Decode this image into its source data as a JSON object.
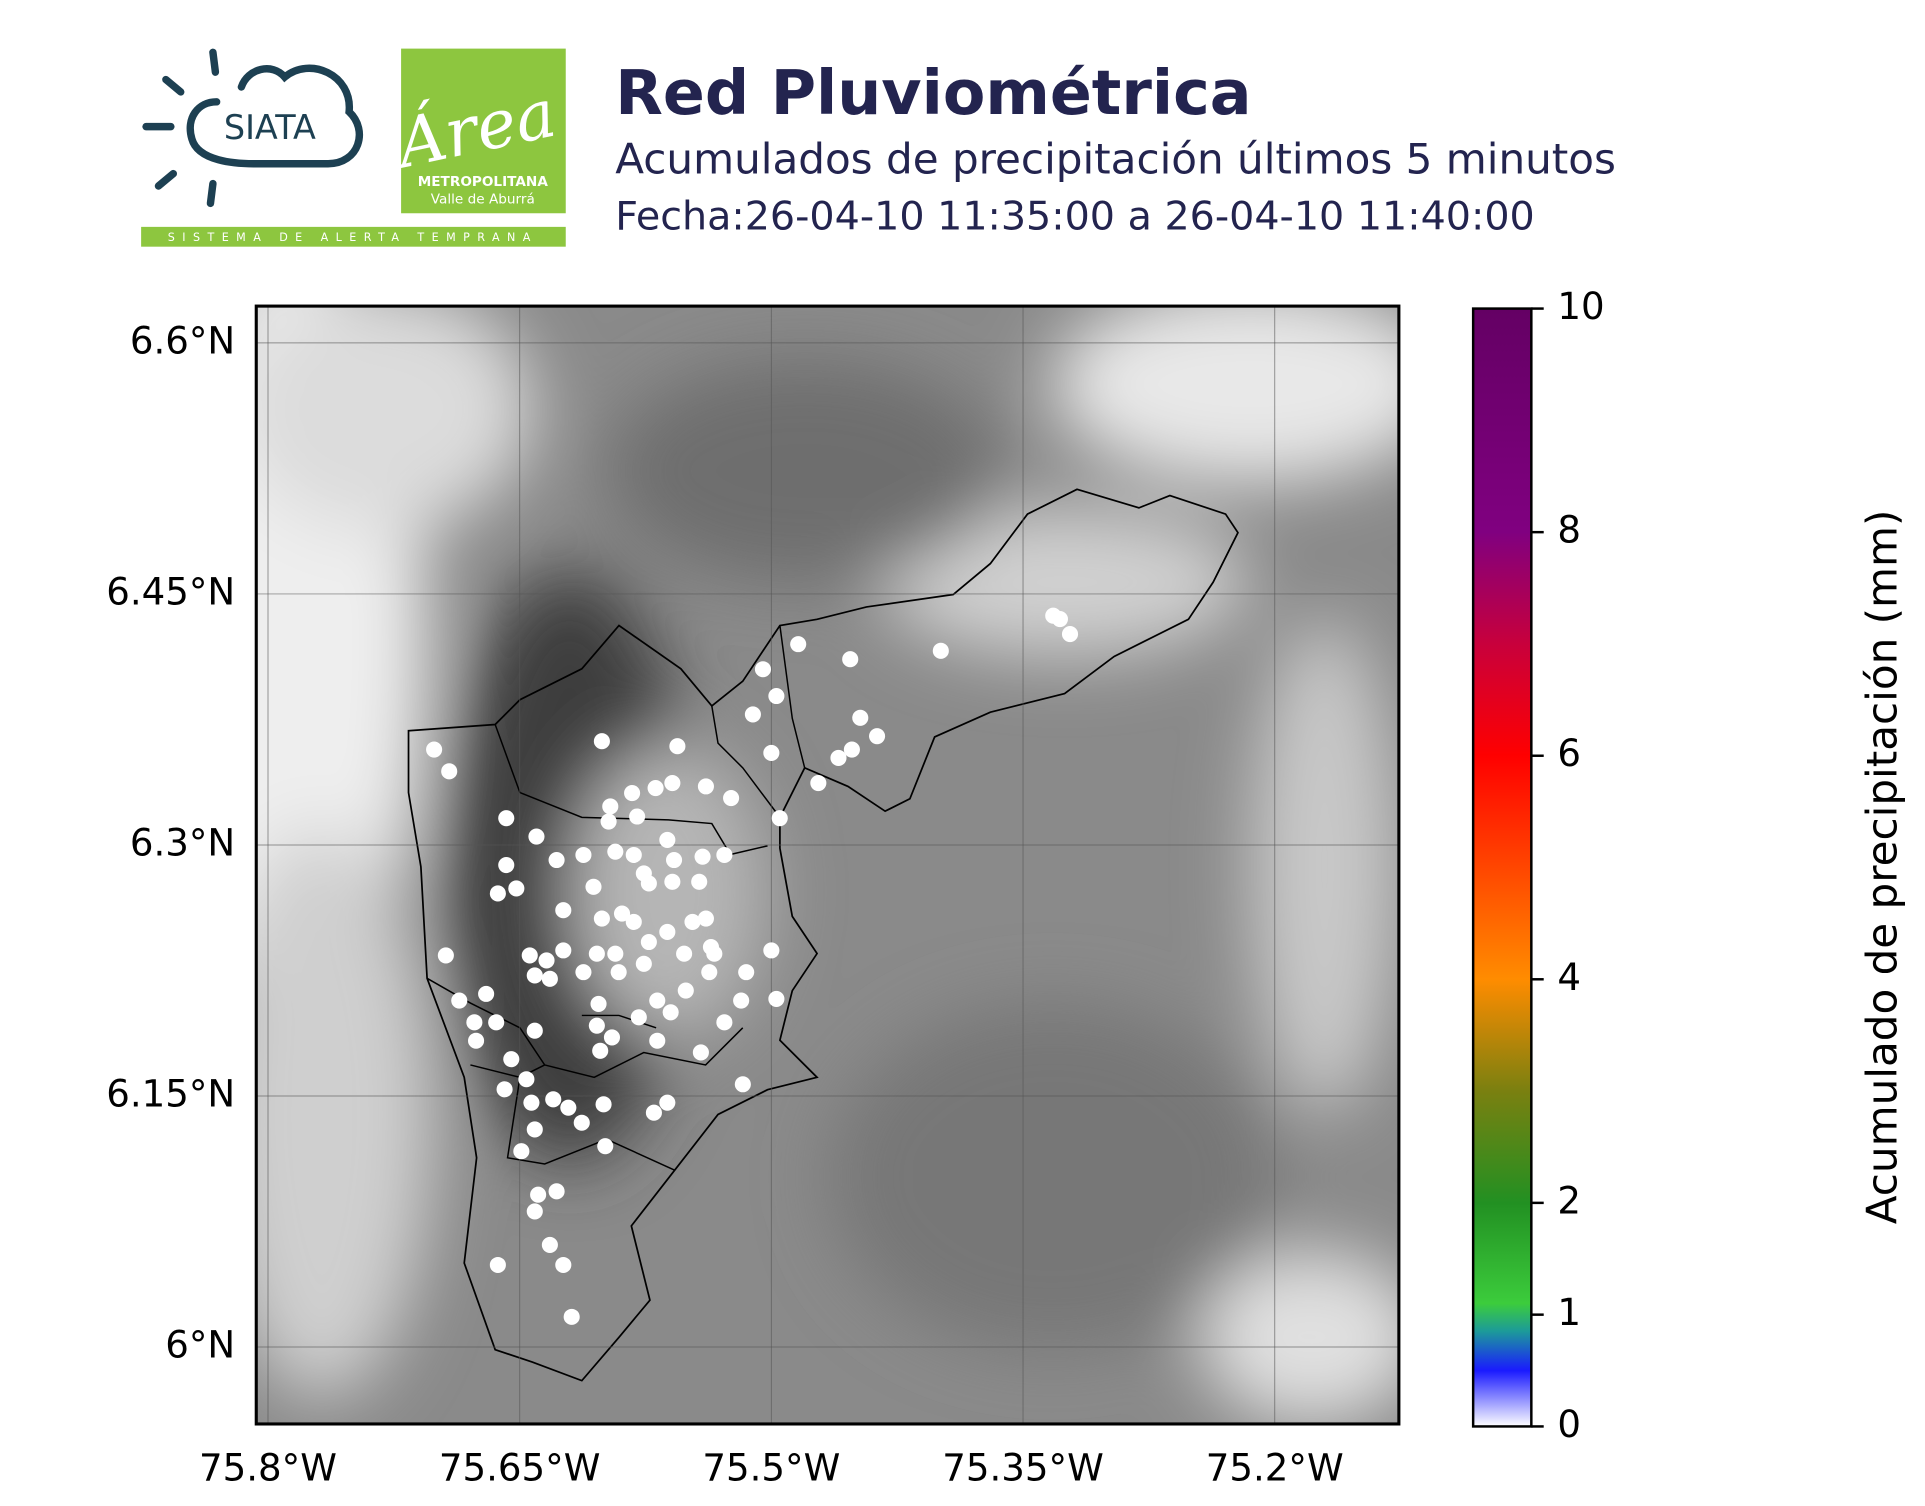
{
  "header": {
    "title": "Red Pluviométrica",
    "subtitle": "Acumulados de precipitación últimos 5 minutos",
    "date": "Fecha:26-04-10 11:35:00 a 26-04-10 11:40:00"
  },
  "logos": {
    "siata": "SIATA",
    "area": "Área",
    "metropolitana": "METROPOLITANA",
    "valle": "Valle de Aburrá",
    "tagline": "SISTEMA DE ALERTA TEMPRANA"
  },
  "chart_data": {
    "type": "scatter",
    "color": "#ffffff",
    "grid": true,
    "xlim": [
      -75.807,
      -75.126
    ],
    "ylim": [
      5.954,
      6.622
    ],
    "xticks": [
      {
        "value": -75.8,
        "label": "75.8°W"
      },
      {
        "value": -75.65,
        "label": "75.65°W"
      },
      {
        "value": -75.5,
        "label": "75.5°W"
      },
      {
        "value": -75.35,
        "label": "75.35°W"
      },
      {
        "value": -75.2,
        "label": "75.2°W"
      }
    ],
    "yticks": [
      {
        "value": 6.0,
        "label": "6°N"
      },
      {
        "value": 6.15,
        "label": "6.15°N"
      },
      {
        "value": 6.3,
        "label": "6.3°N"
      },
      {
        "value": 6.45,
        "label": "6.45°N"
      },
      {
        "value": 6.6,
        "label": "6.6°N"
      }
    ],
    "x": [
      -75.701,
      -75.692,
      -75.658,
      -75.64,
      -75.601,
      -75.556,
      -75.505,
      -75.484,
      -75.497,
      -75.511,
      -75.5,
      -75.495,
      -75.472,
      -75.453,
      -75.447,
      -75.437,
      -75.452,
      -75.46,
      -75.399,
      -75.332,
      -75.328,
      -75.322,
      -75.524,
      -75.539,
      -75.559,
      -75.569,
      -75.583,
      -75.596,
      -75.597,
      -75.58,
      -75.562,
      -75.541,
      -75.528,
      -75.612,
      -75.628,
      -75.593,
      -75.582,
      -75.558,
      -75.576,
      -75.573,
      -75.559,
      -75.543,
      -75.658,
      -75.652,
      -75.663,
      -75.606,
      -75.624,
      -75.601,
      -75.589,
      -75.582,
      -75.562,
      -75.547,
      -75.539,
      -75.536,
      -75.552,
      -75.534,
      -75.573,
      -75.593,
      -75.604,
      -75.624,
      -75.634,
      -75.644,
      -75.694,
      -75.641,
      -75.632,
      -75.612,
      -75.591,
      -75.576,
      -75.551,
      -75.537,
      -75.515,
      -75.5,
      -75.518,
      -75.497,
      -75.568,
      -75.603,
      -75.56,
      -75.579,
      -75.677,
      -75.67,
      -75.686,
      -75.664,
      -75.676,
      -75.641,
      -75.655,
      -75.604,
      -75.595,
      -75.602,
      -75.568,
      -75.542,
      -75.528,
      -75.517,
      -75.659,
      -75.646,
      -75.643,
      -75.63,
      -75.621,
      -75.6,
      -75.613,
      -75.641,
      -75.57,
      -75.562,
      -75.599,
      -75.649,
      -75.639,
      -75.628,
      -75.641,
      -75.632,
      -75.624,
      -75.663,
      -75.619
    ],
    "y": [
      6.357,
      6.344,
      6.316,
      6.305,
      6.362,
      6.359,
      6.405,
      6.42,
      6.389,
      6.378,
      6.355,
      6.316,
      6.337,
      6.411,
      6.376,
      6.365,
      6.357,
      6.352,
      6.416,
      6.437,
      6.435,
      6.426,
      6.328,
      6.335,
      6.337,
      6.334,
      6.331,
      6.323,
      6.314,
      6.317,
      6.303,
      6.293,
      6.294,
      6.294,
      6.291,
      6.296,
      6.294,
      6.291,
      6.283,
      6.277,
      6.278,
      6.278,
      6.288,
      6.274,
      6.271,
      6.275,
      6.261,
      6.256,
      6.259,
      6.254,
      6.248,
      6.254,
      6.256,
      6.239,
      6.235,
      6.235,
      6.242,
      6.235,
      6.235,
      6.237,
      6.231,
      6.234,
      6.234,
      6.222,
      6.22,
      6.224,
      6.224,
      6.229,
      6.213,
      6.224,
      6.224,
      6.237,
      6.207,
      6.208,
      6.207,
      6.205,
      6.2,
      6.197,
      6.194,
      6.211,
      6.207,
      6.194,
      6.183,
      6.189,
      6.172,
      6.192,
      6.185,
      6.177,
      6.183,
      6.176,
      6.194,
      6.157,
      6.154,
      6.16,
      6.146,
      6.148,
      6.143,
      6.145,
      6.134,
      6.13,
      6.14,
      6.146,
      6.12,
      6.117,
      6.091,
      6.093,
      6.081,
      6.061,
      6.049,
      6.049,
      6.018
    ],
    "colorbar": {
      "label": "Acumulado de precipitación (mm)",
      "lim": [
        0,
        10
      ],
      "ticks": [
        0,
        1,
        2,
        4,
        6,
        8,
        10
      ],
      "colors": [
        {
          "value": 0,
          "color": "#ffffff"
        },
        {
          "value": 0.5,
          "color": "#1a1aff"
        },
        {
          "value": 0.85,
          "color": "#1c9a9a"
        },
        {
          "value": 1.1,
          "color": "#3ccc3c"
        },
        {
          "value": 2,
          "color": "#229022"
        },
        {
          "value": 3,
          "color": "#7a8010"
        },
        {
          "value": 4,
          "color": "#ff8c00"
        },
        {
          "value": 6,
          "color": "#ff0000"
        },
        {
          "value": 7,
          "color": "#c8003c"
        },
        {
          "value": 8,
          "color": "#800080"
        },
        {
          "value": 10,
          "color": "#640064"
        }
      ]
    }
  }
}
